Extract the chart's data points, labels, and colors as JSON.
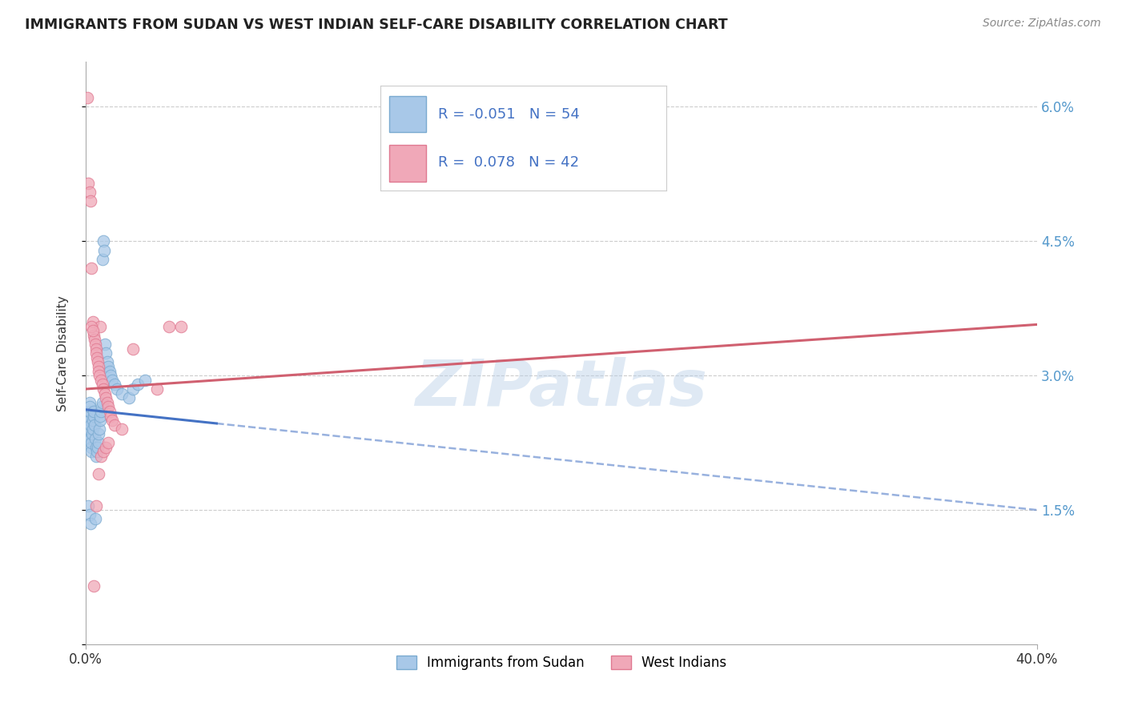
{
  "title": "IMMIGRANTS FROM SUDAN VS WEST INDIAN SELF-CARE DISABILITY CORRELATION CHART",
  "source": "Source: ZipAtlas.com",
  "ylabel": "Self-Care Disability",
  "blue_label": "Immigrants from Sudan",
  "pink_label": "West Indians",
  "blue_R": "-0.051",
  "blue_N": "54",
  "pink_R": "0.078",
  "pink_N": "42",
  "blue_color": "#a8c8e8",
  "pink_color": "#f0a8b8",
  "blue_edge": "#7aaad0",
  "pink_edge": "#e07890",
  "trend_blue": "#4472c4",
  "trend_pink": "#d06070",
  "watermark": "ZIPatlas",
  "xmin": 0.0,
  "xmax": 40.0,
  "ymin": 0.0,
  "ymax": 6.5,
  "ytick_vals": [
    0.0,
    1.5,
    3.0,
    4.5,
    6.0
  ],
  "ytick_labels": [
    "",
    "1.5%",
    "3.0%",
    "4.5%",
    "6.0%"
  ],
  "blue_intercept": 2.62,
  "blue_slope": -0.028,
  "pink_intercept": 2.85,
  "pink_slope": 0.018,
  "blue_solid_end": 5.5,
  "blue_scatter_x": [
    0.05,
    0.08,
    0.1,
    0.12,
    0.14,
    0.15,
    0.15,
    0.17,
    0.18,
    0.2,
    0.2,
    0.22,
    0.25,
    0.25,
    0.28,
    0.3,
    0.3,
    0.32,
    0.35,
    0.38,
    0.4,
    0.42,
    0.45,
    0.48,
    0.5,
    0.52,
    0.55,
    0.58,
    0.6,
    0.62,
    0.65,
    0.68,
    0.7,
    0.72,
    0.75,
    0.78,
    0.8,
    0.85,
    0.9,
    0.95,
    1.0,
    1.05,
    1.1,
    1.2,
    1.3,
    1.5,
    1.8,
    2.0,
    2.2,
    2.5,
    0.1,
    0.15,
    0.2,
    0.4
  ],
  "blue_scatter_y": [
    2.55,
    2.48,
    2.3,
    2.35,
    2.4,
    2.5,
    2.6,
    2.7,
    2.65,
    2.45,
    2.3,
    2.2,
    2.15,
    2.25,
    2.35,
    2.4,
    2.5,
    2.55,
    2.6,
    2.45,
    2.3,
    2.2,
    2.1,
    2.15,
    2.2,
    2.25,
    2.35,
    2.4,
    2.5,
    2.55,
    2.6,
    2.65,
    2.7,
    4.3,
    4.5,
    4.4,
    3.35,
    3.25,
    3.15,
    3.1,
    3.05,
    3.0,
    2.95,
    2.9,
    2.85,
    2.8,
    2.75,
    2.85,
    2.9,
    2.95,
    1.55,
    1.45,
    1.35,
    1.4
  ],
  "pink_scatter_x": [
    0.05,
    0.1,
    0.15,
    0.2,
    0.25,
    0.3,
    0.35,
    0.38,
    0.4,
    0.42,
    0.45,
    0.48,
    0.5,
    0.52,
    0.55,
    0.58,
    0.6,
    0.65,
    0.7,
    0.75,
    0.8,
    0.85,
    0.9,
    0.95,
    1.0,
    1.05,
    1.1,
    1.2,
    1.5,
    2.0,
    3.0,
    3.5,
    4.0,
    0.25,
    0.3,
    0.35,
    0.45,
    0.55,
    0.65,
    0.75,
    0.85,
    0.95
  ],
  "pink_scatter_y": [
    6.1,
    5.15,
    5.05,
    4.95,
    4.2,
    3.6,
    3.45,
    3.4,
    3.35,
    3.3,
    3.25,
    3.2,
    3.15,
    3.1,
    3.05,
    3.0,
    3.55,
    2.95,
    2.9,
    2.85,
    2.8,
    2.75,
    2.7,
    2.65,
    2.6,
    2.55,
    2.5,
    2.45,
    2.4,
    3.3,
    2.85,
    3.55,
    3.55,
    3.55,
    3.5,
    0.65,
    1.55,
    1.9,
    2.1,
    2.15,
    2.2,
    2.25
  ]
}
